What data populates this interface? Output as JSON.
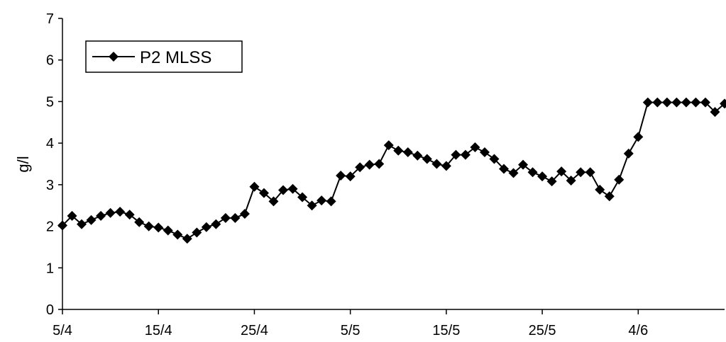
{
  "chart_data": {
    "type": "line",
    "title": "",
    "xlabel": "",
    "ylabel": "g/l",
    "ylim": [
      0,
      7
    ],
    "yticks": [
      0,
      1,
      2,
      3,
      4,
      5,
      6,
      7
    ],
    "grid": false,
    "legend_position": "top-left",
    "x_tick_labels": [
      "5/4",
      "15/4",
      "25/4",
      "5/5",
      "15/5",
      "25/5",
      "4/6"
    ],
    "x_tick_days": [
      0,
      10,
      20,
      30,
      40,
      50,
      60
    ],
    "x_range_days": [
      0,
      69
    ],
    "series": [
      {
        "name": "P2 MLSS",
        "color": "#000000",
        "marker": "diamond",
        "x_days": [
          0,
          1,
          2,
          3,
          4,
          5,
          6,
          7,
          8,
          9,
          10,
          11,
          12,
          13,
          14,
          15,
          16,
          17,
          18,
          19,
          20,
          21,
          22,
          23,
          24,
          25,
          26,
          27,
          28,
          29,
          30,
          31,
          32,
          33,
          34,
          35,
          36,
          37,
          38,
          39,
          40,
          41,
          42,
          43,
          44,
          45,
          46,
          47,
          48,
          49,
          50,
          51,
          52,
          53,
          54,
          55,
          56,
          57,
          58,
          59,
          60,
          61,
          62,
          63,
          64,
          65,
          66,
          67,
          68,
          69
        ],
        "values": [
          2.02,
          2.25,
          2.05,
          2.15,
          2.25,
          2.32,
          2.35,
          2.28,
          2.1,
          2.0,
          1.97,
          1.9,
          1.8,
          1.7,
          1.85,
          1.98,
          2.05,
          2.2,
          2.2,
          2.3,
          2.95,
          2.8,
          2.6,
          2.87,
          2.9,
          2.7,
          2.5,
          2.62,
          2.6,
          3.22,
          3.2,
          3.42,
          3.48,
          3.5,
          3.95,
          3.82,
          3.78,
          3.7,
          3.62,
          3.5,
          3.45,
          3.72,
          3.72,
          3.9,
          3.78,
          3.62,
          3.38,
          3.28,
          3.48,
          3.3,
          3.2,
          3.08,
          3.32,
          3.1,
          3.3,
          3.3,
          2.88,
          2.72,
          3.12,
          3.75,
          4.15,
          4.98,
          4.98,
          4.98,
          4.98,
          4.98,
          4.98,
          4.98,
          4.75,
          4.95
        ]
      }
    ]
  }
}
